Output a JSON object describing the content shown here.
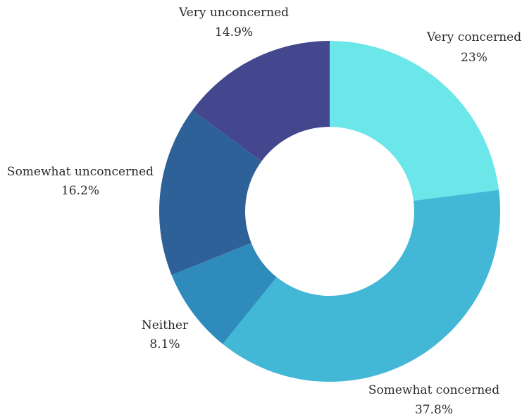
{
  "chart_data": {
    "type": "pie",
    "donut": true,
    "title": "",
    "slices": [
      {
        "label": "Very concerned",
        "value": 23,
        "display": "23%",
        "color": "#6be6e9"
      },
      {
        "label": "Somewhat concerned",
        "value": 37.8,
        "display": "37.8%",
        "color": "#42b7d6"
      },
      {
        "label": "Neither",
        "value": 8.1,
        "display": "8.1%",
        "color": "#2e8bbb"
      },
      {
        "label": "Somewhat unconcerned",
        "value": 16.2,
        "display": "16.2%",
        "color": "#2e6198"
      },
      {
        "label": "Very unconcerned",
        "value": 14.9,
        "display": "14.9%",
        "color": "#44478e"
      }
    ],
    "legend": "none"
  }
}
